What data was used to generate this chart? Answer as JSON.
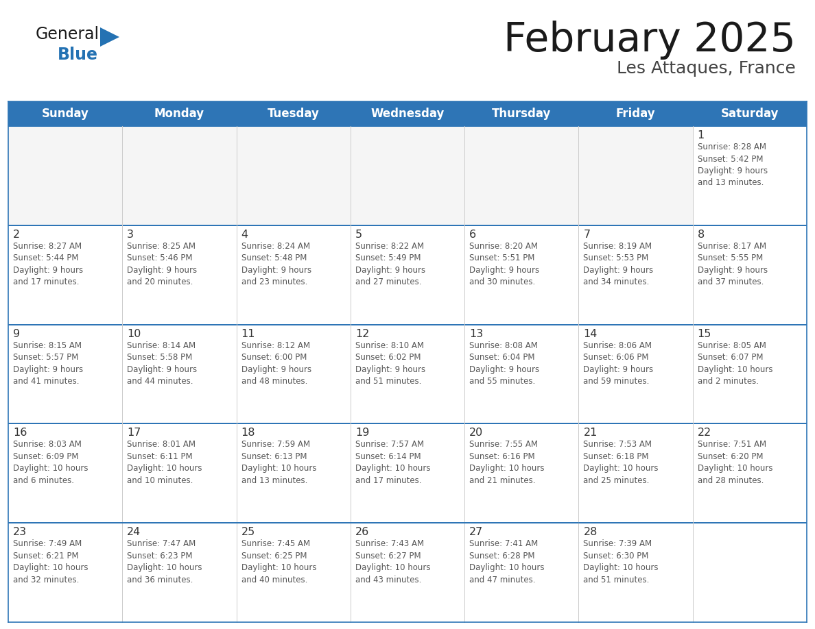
{
  "title": "February 2025",
  "subtitle": "Les Attaques, France",
  "header_bg": "#2E75B6",
  "header_text_color": "#FFFFFF",
  "grid_line_color": "#2E75B6",
  "text_color": "#404040",
  "day_number_color": "#333333",
  "info_text_color": "#555555",
  "days_of_week": [
    "Sunday",
    "Monday",
    "Tuesday",
    "Wednesday",
    "Thursday",
    "Friday",
    "Saturday"
  ],
  "weeks": [
    [
      {
        "day": null,
        "info": null
      },
      {
        "day": null,
        "info": null
      },
      {
        "day": null,
        "info": null
      },
      {
        "day": null,
        "info": null
      },
      {
        "day": null,
        "info": null
      },
      {
        "day": null,
        "info": null
      },
      {
        "day": 1,
        "info": "Sunrise: 8:28 AM\nSunset: 5:42 PM\nDaylight: 9 hours\nand 13 minutes."
      }
    ],
    [
      {
        "day": 2,
        "info": "Sunrise: 8:27 AM\nSunset: 5:44 PM\nDaylight: 9 hours\nand 17 minutes."
      },
      {
        "day": 3,
        "info": "Sunrise: 8:25 AM\nSunset: 5:46 PM\nDaylight: 9 hours\nand 20 minutes."
      },
      {
        "day": 4,
        "info": "Sunrise: 8:24 AM\nSunset: 5:48 PM\nDaylight: 9 hours\nand 23 minutes."
      },
      {
        "day": 5,
        "info": "Sunrise: 8:22 AM\nSunset: 5:49 PM\nDaylight: 9 hours\nand 27 minutes."
      },
      {
        "day": 6,
        "info": "Sunrise: 8:20 AM\nSunset: 5:51 PM\nDaylight: 9 hours\nand 30 minutes."
      },
      {
        "day": 7,
        "info": "Sunrise: 8:19 AM\nSunset: 5:53 PM\nDaylight: 9 hours\nand 34 minutes."
      },
      {
        "day": 8,
        "info": "Sunrise: 8:17 AM\nSunset: 5:55 PM\nDaylight: 9 hours\nand 37 minutes."
      }
    ],
    [
      {
        "day": 9,
        "info": "Sunrise: 8:15 AM\nSunset: 5:57 PM\nDaylight: 9 hours\nand 41 minutes."
      },
      {
        "day": 10,
        "info": "Sunrise: 8:14 AM\nSunset: 5:58 PM\nDaylight: 9 hours\nand 44 minutes."
      },
      {
        "day": 11,
        "info": "Sunrise: 8:12 AM\nSunset: 6:00 PM\nDaylight: 9 hours\nand 48 minutes."
      },
      {
        "day": 12,
        "info": "Sunrise: 8:10 AM\nSunset: 6:02 PM\nDaylight: 9 hours\nand 51 minutes."
      },
      {
        "day": 13,
        "info": "Sunrise: 8:08 AM\nSunset: 6:04 PM\nDaylight: 9 hours\nand 55 minutes."
      },
      {
        "day": 14,
        "info": "Sunrise: 8:06 AM\nSunset: 6:06 PM\nDaylight: 9 hours\nand 59 minutes."
      },
      {
        "day": 15,
        "info": "Sunrise: 8:05 AM\nSunset: 6:07 PM\nDaylight: 10 hours\nand 2 minutes."
      }
    ],
    [
      {
        "day": 16,
        "info": "Sunrise: 8:03 AM\nSunset: 6:09 PM\nDaylight: 10 hours\nand 6 minutes."
      },
      {
        "day": 17,
        "info": "Sunrise: 8:01 AM\nSunset: 6:11 PM\nDaylight: 10 hours\nand 10 minutes."
      },
      {
        "day": 18,
        "info": "Sunrise: 7:59 AM\nSunset: 6:13 PM\nDaylight: 10 hours\nand 13 minutes."
      },
      {
        "day": 19,
        "info": "Sunrise: 7:57 AM\nSunset: 6:14 PM\nDaylight: 10 hours\nand 17 minutes."
      },
      {
        "day": 20,
        "info": "Sunrise: 7:55 AM\nSunset: 6:16 PM\nDaylight: 10 hours\nand 21 minutes."
      },
      {
        "day": 21,
        "info": "Sunrise: 7:53 AM\nSunset: 6:18 PM\nDaylight: 10 hours\nand 25 minutes."
      },
      {
        "day": 22,
        "info": "Sunrise: 7:51 AM\nSunset: 6:20 PM\nDaylight: 10 hours\nand 28 minutes."
      }
    ],
    [
      {
        "day": 23,
        "info": "Sunrise: 7:49 AM\nSunset: 6:21 PM\nDaylight: 10 hours\nand 32 minutes."
      },
      {
        "day": 24,
        "info": "Sunrise: 7:47 AM\nSunset: 6:23 PM\nDaylight: 10 hours\nand 36 minutes."
      },
      {
        "day": 25,
        "info": "Sunrise: 7:45 AM\nSunset: 6:25 PM\nDaylight: 10 hours\nand 40 minutes."
      },
      {
        "day": 26,
        "info": "Sunrise: 7:43 AM\nSunset: 6:27 PM\nDaylight: 10 hours\nand 43 minutes."
      },
      {
        "day": 27,
        "info": "Sunrise: 7:41 AM\nSunset: 6:28 PM\nDaylight: 10 hours\nand 47 minutes."
      },
      {
        "day": 28,
        "info": "Sunrise: 7:39 AM\nSunset: 6:30 PM\nDaylight: 10 hours\nand 51 minutes."
      },
      {
        "day": null,
        "info": null
      }
    ]
  ],
  "logo_general_color": "#1a1a1a",
  "logo_blue_color": "#2472B3",
  "logo_triangle_color": "#2472B3"
}
